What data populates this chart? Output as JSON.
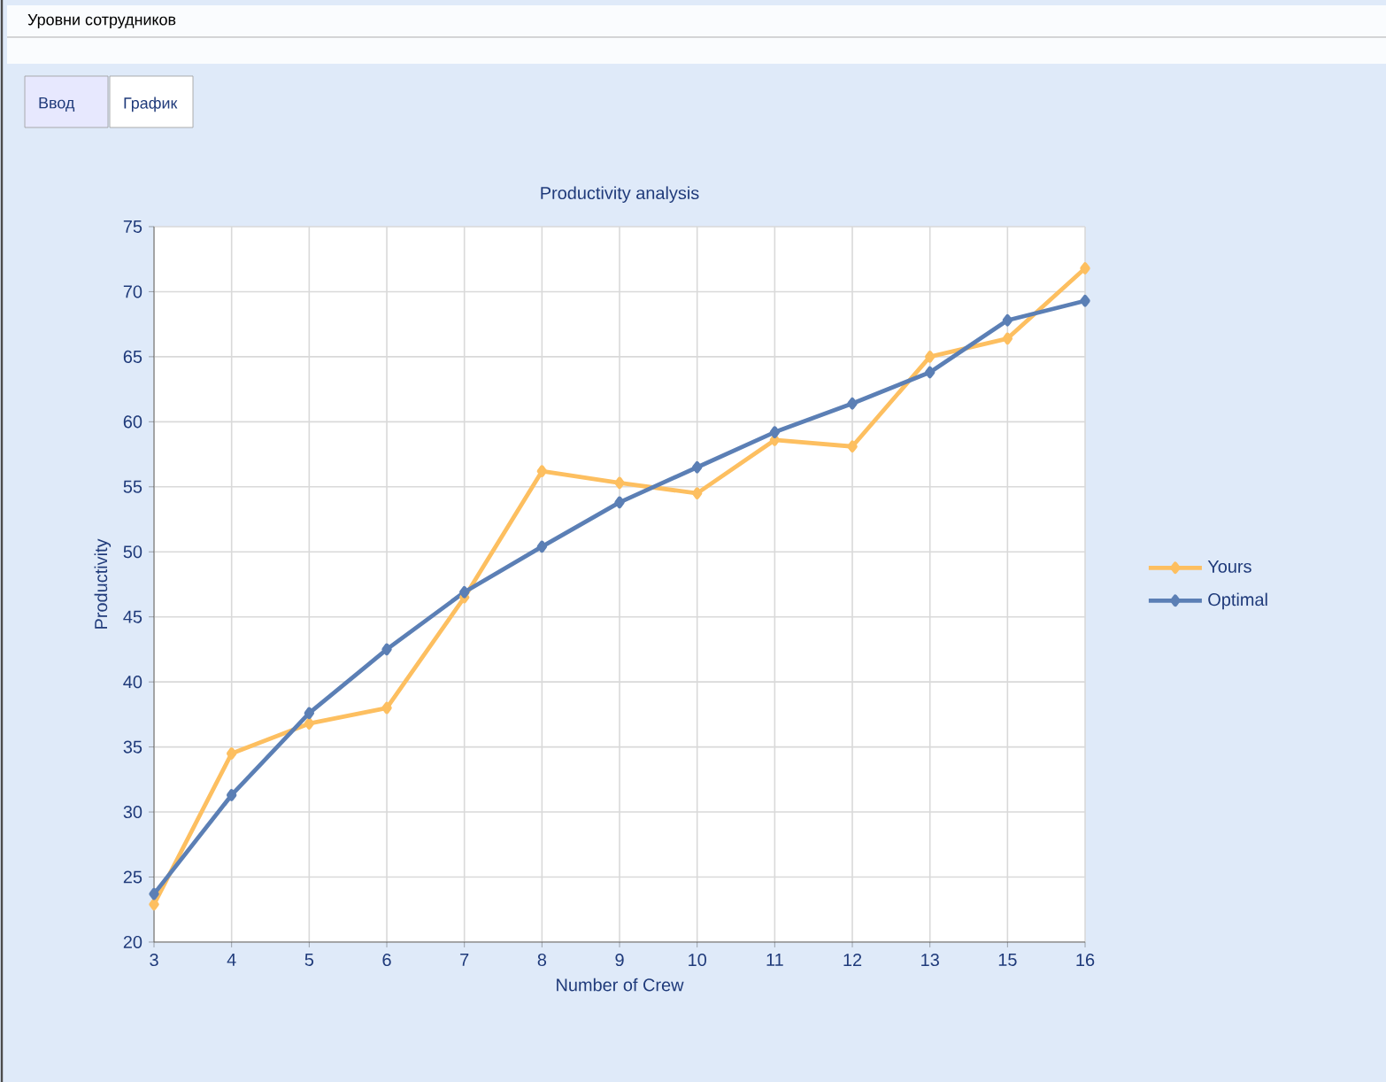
{
  "chart_data": {
    "type": "line",
    "title": "Productivity analysis",
    "xlabel": "Number of Crew",
    "ylabel": "Productivity",
    "annotations": [
      "Уровни сотрудников",
      "Ввод",
      "График"
    ],
    "categories": [
      "3",
      "4",
      "5",
      "6",
      "7",
      "8",
      "9",
      "10",
      "11",
      "12",
      "13",
      "15",
      "16"
    ],
    "series": [
      {
        "name": "Yours",
        "color": "#fdbf60",
        "values": [
          22.9,
          34.5,
          36.8,
          38.0,
          46.5,
          56.2,
          55.3,
          54.5,
          58.6,
          58.1,
          65.0,
          66.4,
          71.8
        ]
      },
      {
        "name": "Optimal",
        "color": "#5b7fb5",
        "values": [
          23.7,
          31.3,
          37.6,
          42.5,
          46.9,
          50.4,
          53.8,
          56.5,
          59.2,
          61.4,
          63.8,
          67.8,
          69.3
        ]
      }
    ],
    "ylim": [
      20,
      75
    ],
    "yticks": [
      20,
      25,
      30,
      35,
      40,
      45,
      50,
      55,
      60,
      65,
      70,
      75
    ],
    "grid": true,
    "legend": "right",
    "marker": "diamond",
    "line_style": "solid"
  }
}
